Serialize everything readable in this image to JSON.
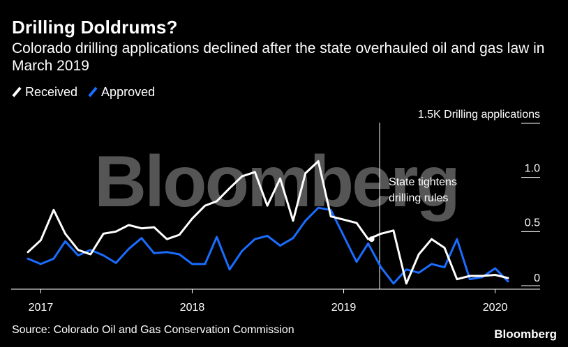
{
  "title": "Drilling Doldrums?",
  "subtitle": "Colorado drilling applications declined after the state overhauled oil and gas law in March 2019",
  "source": "Source: Colorado Oil and Gas Conservation Commission",
  "brand": "Bloomberg",
  "watermark": "Bloomberg",
  "colors": {
    "background": "#000000",
    "received": "#ffffff",
    "approved": "#1a6dff",
    "grid": "#ffffff",
    "watermark": "#555555"
  },
  "chart_data": {
    "type": "line",
    "title": "Drilling Doldrums?",
    "ylabel": "1.5K Drilling applications",
    "ylim": [
      0,
      1500
    ],
    "y_ticks": [
      0,
      500,
      1000,
      1500
    ],
    "y_tick_labels": [
      "0",
      "0.5",
      "1.0",
      "1.5K Drilling applications"
    ],
    "x_tick_labels": [
      "2017",
      "2018",
      "2019",
      "2020"
    ],
    "x_tick_dates": [
      "2017-01",
      "2018-01",
      "2019-01",
      "2020-01"
    ],
    "grid": false,
    "legend": "top-left",
    "x": [
      "2016-12",
      "2017-01",
      "2017-02",
      "2017-03",
      "2017-04",
      "2017-05",
      "2017-06",
      "2017-07",
      "2017-08",
      "2017-09",
      "2017-10",
      "2017-11",
      "2017-12",
      "2018-01",
      "2018-02",
      "2018-03",
      "2018-04",
      "2018-05",
      "2018-06",
      "2018-07",
      "2018-08",
      "2018-09",
      "2018-10",
      "2018-11",
      "2018-12",
      "2019-01",
      "2019-02",
      "2019-03",
      "2019-04",
      "2019-05",
      "2019-06",
      "2019-07",
      "2019-08",
      "2019-09",
      "2019-10",
      "2019-11",
      "2019-12",
      "2020-01",
      "2020-02"
    ],
    "series": [
      {
        "name": "Received",
        "values": [
          310,
          420,
          700,
          480,
          330,
          290,
          480,
          500,
          560,
          530,
          540,
          430,
          470,
          620,
          740,
          780,
          900,
          1010,
          1050,
          740,
          990,
          600,
          1040,
          1150,
          640,
          610,
          580,
          430,
          480,
          510,
          20,
          290,
          430,
          350,
          60,
          90,
          90,
          100,
          70
        ]
      },
      {
        "name": "Approved",
        "values": [
          250,
          200,
          250,
          410,
          280,
          330,
          280,
          210,
          340,
          440,
          300,
          310,
          290,
          200,
          200,
          450,
          150,
          320,
          430,
          460,
          370,
          440,
          600,
          720,
          700,
          460,
          220,
          390,
          170,
          20,
          150,
          120,
          200,
          170,
          430,
          60,
          80,
          160,
          40
        ]
      }
    ],
    "annotations": [
      {
        "x": "2019-04",
        "text_lines": [
          "State tightens",
          "drilling rules"
        ]
      }
    ]
  }
}
